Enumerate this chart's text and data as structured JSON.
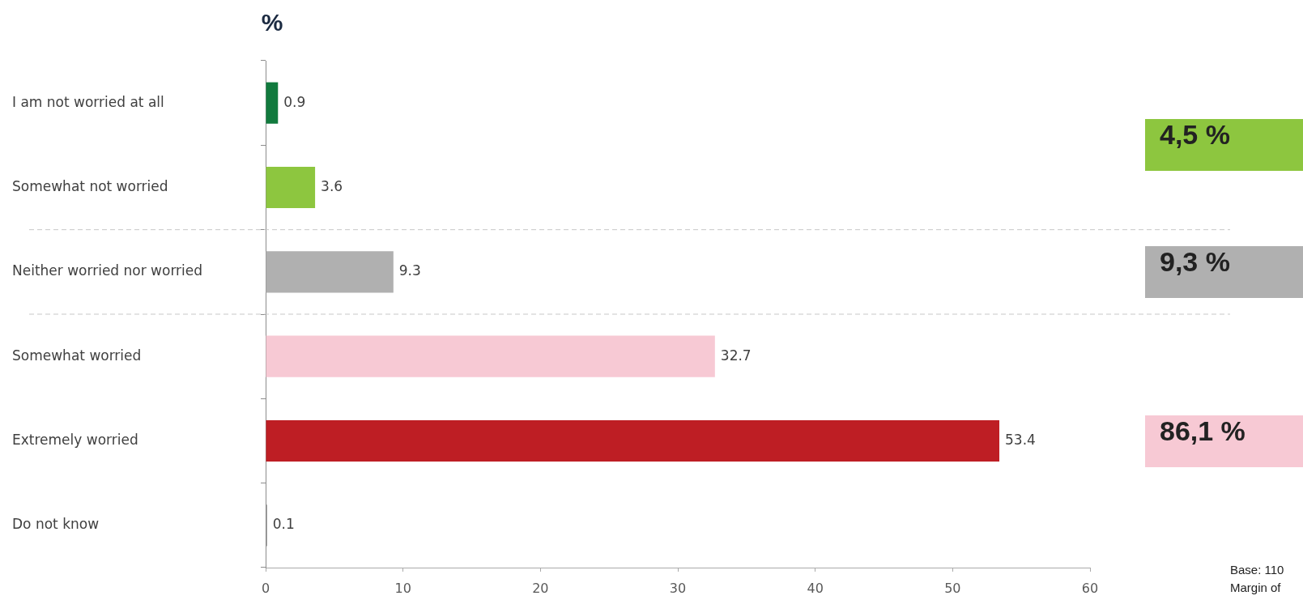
{
  "chart_data": {
    "type": "bar",
    "orientation": "horizontal",
    "title": "%",
    "categories": [
      "I am not worried at all",
      "Somewhat not worried",
      "Neither worried nor worried",
      "Somewhat worried",
      "Extremely worried",
      "Do not know"
    ],
    "values": [
      0.9,
      3.6,
      9.3,
      32.7,
      53.4,
      0.1
    ],
    "colors": [
      "#117a3d",
      "#8dc63f",
      "#b0b0b0",
      "#f7c9d4",
      "#be1e24",
      "#7f7f7f"
    ],
    "xlim": [
      0,
      60
    ],
    "xticks": [
      0,
      10,
      20,
      30,
      40,
      50,
      60
    ],
    "data_labels": true,
    "annotations": [
      "4,5 %",
      "9,3 %",
      "86,1 %",
      "Base: 110",
      "Margin of"
    ]
  }
}
